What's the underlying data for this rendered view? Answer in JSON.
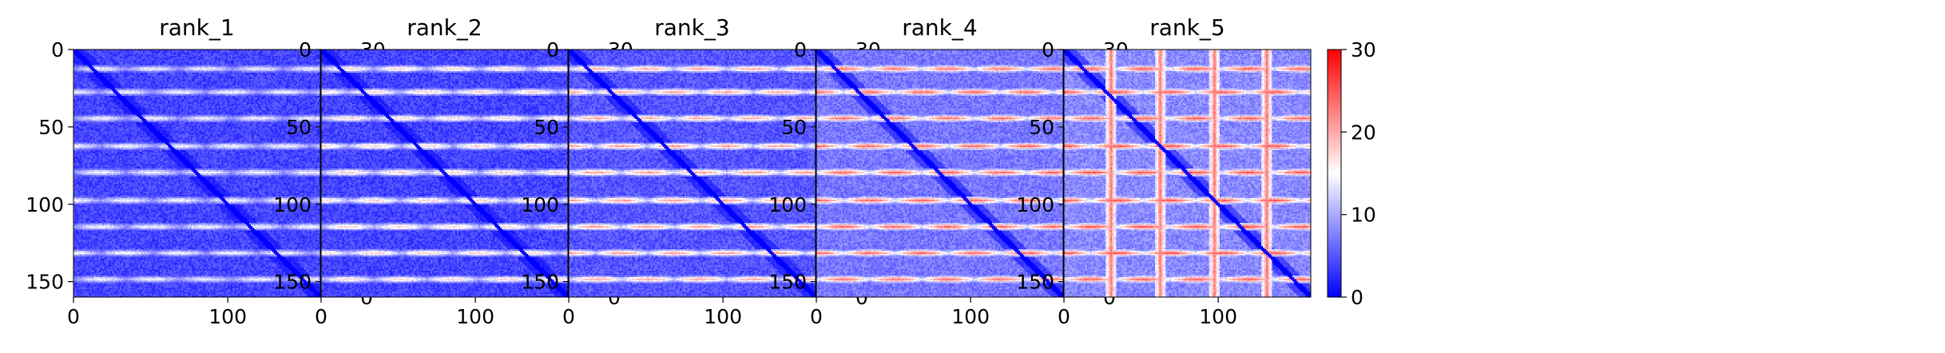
{
  "chart_data": {
    "type": "heatmap",
    "colormap": "bwr",
    "colormap_colors": [
      "#0000ff",
      "#ffffff",
      "#ff0000"
    ],
    "vmin": 0,
    "vmax": 30,
    "colorbar_ticks": [
      "0",
      "10",
      "20",
      "30"
    ],
    "x_ticks": [
      "0",
      "100"
    ],
    "y_ticks": [
      "0",
      "50",
      "100",
      "150"
    ],
    "matrix_size": 160,
    "band_rows": [
      12,
      27,
      44,
      62,
      79,
      97,
      114,
      131,
      148
    ],
    "panels": [
      {
        "title": "rank_1",
        "band_level": 13,
        "base_level": 2,
        "vertical_bands": []
      },
      {
        "title": "rank_2",
        "band_level": 16,
        "base_level": 2,
        "vertical_bands": []
      },
      {
        "title": "rank_3",
        "band_level": 19,
        "base_level": 3,
        "vertical_bands": []
      },
      {
        "title": "rank_4",
        "band_level": 22,
        "base_level": 5,
        "vertical_bands": []
      },
      {
        "title": "rank_5",
        "band_level": 23,
        "base_level": 6,
        "vertical_bands": [
          30,
          62,
          97,
          131
        ]
      }
    ]
  }
}
